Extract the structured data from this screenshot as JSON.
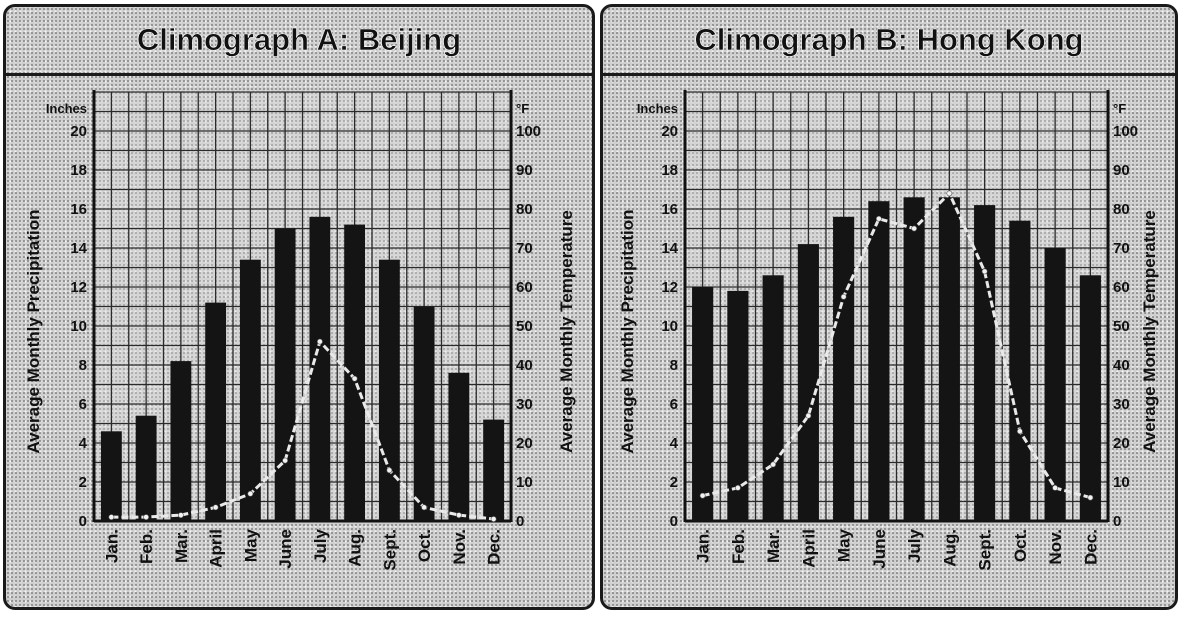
{
  "chart_data": [
    {
      "type": "bar",
      "title": "Climograph A: Beijing",
      "categories": [
        "Jan.",
        "Feb.",
        "Mar.",
        "April",
        "May",
        "June",
        "July",
        "Aug.",
        "Sept.",
        "Oct.",
        "Nov.",
        "Dec."
      ],
      "y_left_label": "Average Monthly Precipitation",
      "y_left_unit": "Inches",
      "y_left_ticks": [
        0,
        2,
        4,
        6,
        8,
        10,
        12,
        14,
        16,
        18,
        20
      ],
      "y_left_range": [
        0,
        22
      ],
      "y_right_label": "Average Monthly Temperature",
      "y_right_unit": "°F",
      "y_right_ticks": [
        0,
        10,
        20,
        30,
        40,
        50,
        60,
        70,
        80,
        90,
        100
      ],
      "y_right_range": [
        0,
        110
      ],
      "series": [
        {
          "type": "bar",
          "axis": "right",
          "values": [
            23,
            27,
            41,
            56,
            67,
            75,
            78,
            76,
            67,
            55,
            38,
            26
          ]
        },
        {
          "type": "line",
          "axis": "left",
          "values": [
            0.2,
            0.2,
            0.3,
            0.7,
            1.4,
            3.1,
            9.2,
            7.3,
            2.6,
            0.7,
            0.3,
            0.1
          ]
        }
      ],
      "grid": true
    },
    {
      "type": "bar",
      "title": "Climograph B: Hong Kong",
      "categories": [
        "Jan.",
        "Feb.",
        "Mar.",
        "April",
        "May",
        "June",
        "July",
        "Aug.",
        "Sept.",
        "Oct.",
        "Nov.",
        "Dec."
      ],
      "y_left_label": "Average Monthly Precipitation",
      "y_left_unit": "Inches",
      "y_left_ticks": [
        0,
        2,
        4,
        6,
        8,
        10,
        12,
        14,
        16,
        18,
        20
      ],
      "y_left_range": [
        0,
        22
      ],
      "y_right_label": "Average Monthly Temperature",
      "y_right_unit": "°F",
      "y_right_ticks": [
        0,
        10,
        20,
        30,
        40,
        50,
        60,
        70,
        80,
        90,
        100
      ],
      "y_right_range": [
        0,
        110
      ],
      "series": [
        {
          "type": "bar",
          "axis": "right",
          "values": [
            60,
            59,
            63,
            71,
            78,
            82,
            83,
            83,
            81,
            77,
            70,
            63
          ]
        },
        {
          "type": "line",
          "axis": "left",
          "values": [
            1.3,
            1.7,
            2.9,
            5.4,
            11.5,
            15.5,
            15.0,
            16.8,
            12.8,
            4.6,
            1.7,
            1.2
          ]
        }
      ],
      "grid": true
    }
  ]
}
